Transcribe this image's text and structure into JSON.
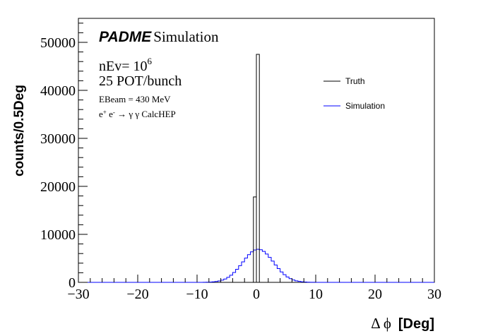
{
  "colors": {
    "truth": "#000000",
    "simulation": "#0000ff",
    "axis": "#000000"
  },
  "annotations": {
    "brand": "PADME",
    "brand_suffix": "Simulation",
    "nev_prefix": "nEv= 10",
    "nev_exponent": "6",
    "pot": "25 POT/bunch",
    "ebeam": "EBeam = 430 MeV",
    "process_e": "e",
    "process_plus": "+",
    "process_minus": "-",
    "process_rest": "→ γ γ CalcHEP"
  },
  "chart_data": {
    "type": "histogram",
    "title": "",
    "xlabel_symbol": "Δ ϕ",
    "xlabel_unit": "[Deg]",
    "ylabel": "counts/0.5Deg",
    "xlim": [
      -30,
      30
    ],
    "ylim": [
      0,
      55000
    ],
    "x_tick_labels": [
      "−30",
      "−20",
      "−10",
      "0",
      "10",
      "20",
      "30"
    ],
    "x_tick_values": [
      -30,
      -20,
      -10,
      0,
      10,
      20,
      30
    ],
    "y_tick_labels": [
      "0",
      "10000",
      "20000",
      "30000",
      "40000",
      "50000"
    ],
    "y_tick_values": [
      0,
      10000,
      20000,
      30000,
      40000,
      50000
    ],
    "bin_width": 0.5,
    "legend": {
      "position": "top-right",
      "entries": [
        "Truth",
        "Simulation"
      ]
    },
    "series": [
      {
        "name": "Truth",
        "bins": [
          [
            -0.5,
            0.0,
            17800
          ],
          [
            0.0,
            0.5,
            47500
          ]
        ]
      },
      {
        "name": "Simulation",
        "mean": 0.3,
        "sigma": 2.6,
        "peak": 6900,
        "x_start": -10,
        "x_end": 11
      }
    ]
  }
}
